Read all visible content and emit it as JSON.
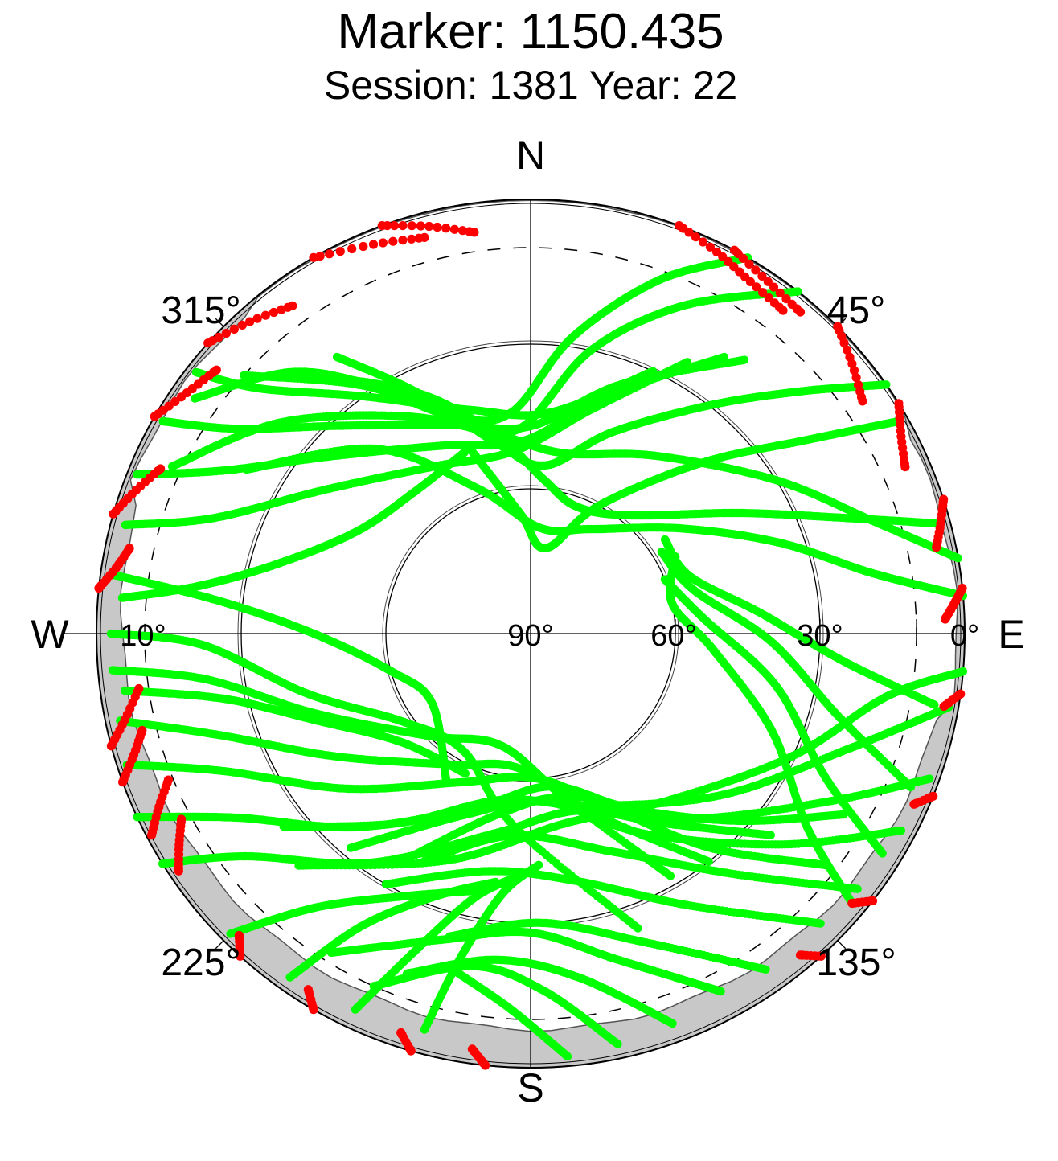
{
  "title": "Marker: 1150.435",
  "subtitle": "Session: 1381 Year: 22",
  "chart_data": {
    "type": "scatter",
    "projection": "polar sky plot",
    "title": "Marker: 1150.435",
    "subtitle": "Session: 1381 Year: 22",
    "direction_labels": [
      "N",
      "E",
      "S",
      "W"
    ],
    "azimuth_labels": [
      "45°",
      "135°",
      "225°",
      "315°"
    ],
    "elevation_labels": [
      "0°",
      "10°",
      "30°",
      "60°",
      "90°"
    ],
    "elevation_circles": [
      0,
      10,
      30,
      60
    ],
    "mask_elevation": 10,
    "series": [],
    "colors": {
      "valid": "#00ff00",
      "low_elevation": "#ff0000",
      "obstruction": "#c8c8c8",
      "grid": "#000000"
    },
    "tracks": [
      {
        "az": [
          38,
          25,
          12,
          358,
          345,
          330,
          318,
          305
        ],
        "el": [
          0,
          15,
          30,
          47,
          45,
          32,
          17,
          5
        ],
        "color": "green"
      },
      {
        "az": [
          30,
          20,
          8,
          355,
          340,
          326,
          312
        ],
        "el": [
          0,
          12,
          28,
          44,
          42,
          28,
          10
        ],
        "color": "green"
      },
      {
        "az": [
          55,
          48,
          38,
          22,
          5,
          350,
          335,
          325
        ],
        "el": [
          0,
          15,
          30,
          45,
          55,
          50,
          35,
          20
        ],
        "color": "green"
      },
      {
        "az": [
          60,
          55,
          45,
          28,
          10,
          355,
          342
        ],
        "el": [
          2,
          20,
          40,
          60,
          72,
          65,
          50
        ],
        "color": "green"
      },
      {
        "az": [
          75,
          70,
          60,
          40,
          20,
          5,
          350,
          335,
          320
        ],
        "el": [
          2,
          20,
          40,
          58,
          62,
          58,
          48,
          35,
          20
        ],
        "color": "green"
      },
      {
        "az": [
          80,
          72,
          58,
          35,
          10,
          350,
          330,
          310,
          295
        ],
        "el": [
          0,
          15,
          30,
          45,
          52,
          48,
          38,
          22,
          8
        ],
        "color": "green"
      },
      {
        "az": [
          85,
          80,
          70,
          55,
          30,
          5,
          340,
          320,
          300
        ],
        "el": [
          0,
          18,
          35,
          52,
          65,
          68,
          58,
          40,
          22
        ],
        "color": "green"
      },
      {
        "az": [
          95,
          100,
          115,
          140,
          170,
          200,
          225
        ],
        "el": [
          0,
          15,
          30,
          45,
          50,
          40,
          22
        ],
        "color": "green"
      },
      {
        "az": [
          100,
          110,
          130,
          160,
          190,
          215,
          232
        ],
        "el": [
          2,
          20,
          38,
          52,
          55,
          42,
          25
        ],
        "color": "green"
      },
      {
        "az": [
          110,
          120,
          140,
          165,
          190,
          210
        ],
        "el": [
          2,
          20,
          40,
          55,
          52,
          35
        ],
        "color": "green"
      },
      {
        "az": [
          118,
          130,
          150,
          175,
          200,
          220
        ],
        "el": [
          3,
          22,
          42,
          55,
          50,
          32
        ],
        "color": "green"
      },
      {
        "az": [
          128,
          140,
          160,
          185,
          205
        ],
        "el": [
          4,
          25,
          42,
          48,
          38
        ],
        "color": "green"
      },
      {
        "az": [
          135,
          150,
          170,
          190,
          210
        ],
        "el": [
          5,
          25,
          38,
          40,
          30
        ],
        "color": "green"
      },
      {
        "az": [
          145,
          160,
          178,
          195
        ],
        "el": [
          5,
          22,
          30,
          25
        ],
        "color": "green"
      },
      {
        "az": [
          152,
          165,
          180,
          196,
          212
        ],
        "el": [
          6,
          20,
          28,
          24,
          12
        ],
        "color": "green"
      },
      {
        "az": [
          160,
          172,
          186,
          200
        ],
        "el": [
          4,
          18,
          22,
          15
        ],
        "color": "green"
      },
      {
        "az": [
          168,
          178,
          190,
          204
        ],
        "el": [
          3,
          16,
          20,
          10
        ],
        "color": "green"
      },
      {
        "az": [
          175,
          183,
          192
        ],
        "el": [
          2,
          12,
          18
        ],
        "color": "green"
      },
      {
        "az": [
          238,
          232,
          215,
          190,
          165,
          145,
          130
        ],
        "el": [
          0,
          15,
          32,
          48,
          52,
          42,
          25
        ],
        "color": "green"
      },
      {
        "az": [
          245,
          238,
          222,
          198,
          172,
          150,
          132,
          120
        ],
        "el": [
          0,
          18,
          36,
          52,
          58,
          48,
          32,
          15
        ],
        "color": "green"
      },
      {
        "az": [
          252,
          246,
          230,
          205,
          178,
          155,
          140,
          128
        ],
        "el": [
          2,
          20,
          40,
          56,
          60,
          50,
          32,
          12
        ],
        "color": "green"
      },
      {
        "az": [
          258,
          252,
          238,
          212,
          185,
          160,
          142
        ],
        "el": [
          3,
          22,
          42,
          58,
          62,
          50,
          30
        ],
        "color": "green"
      },
      {
        "az": [
          265,
          262,
          250,
          225,
          195,
          168,
          150
        ],
        "el": [
          3,
          22,
          42,
          60,
          66,
          55,
          32
        ],
        "color": "green"
      },
      {
        "az": [
          270,
          268,
          255,
          235,
          210,
          185,
          160
        ],
        "el": [
          3,
          22,
          42,
          58,
          62,
          50,
          25
        ],
        "color": "green"
      },
      {
        "az": [
          278,
          276,
          270,
          255,
          235,
          210
        ],
        "el": [
          3,
          25,
          45,
          60,
          65,
          55
        ],
        "color": "green"
      },
      {
        "az": [
          285,
          290,
          305,
          330,
          355,
          15,
          30
        ],
        "el": [
          3,
          20,
          38,
          50,
          52,
          42,
          25
        ],
        "color": "green"
      },
      {
        "az": [
          292,
          298,
          312,
          335,
          358,
          18,
          35
        ],
        "el": [
          2,
          18,
          35,
          47,
          50,
          38,
          20
        ],
        "color": "green"
      },
      {
        "az": [
          300,
          305,
          318,
          340,
          0,
          20,
          38
        ],
        "el": [
          2,
          16,
          32,
          44,
          47,
          35,
          18
        ],
        "color": "green"
      },
      {
        "az": [
          308,
          312,
          325,
          345,
          5,
          25
        ],
        "el": [
          2,
          14,
          30,
          42,
          44,
          30
        ],
        "color": "green"
      },
      {
        "az": [
          275,
          278,
          285,
          300,
          320,
          340
        ],
        "el": [
          5,
          20,
          35,
          48,
          52,
          50
        ],
        "color": "green"
      },
      {
        "az": [
          262,
          258,
          248,
          230,
          205
        ],
        "el": [
          5,
          25,
          42,
          55,
          58
        ],
        "color": "green"
      },
      {
        "az": [
          225,
          218,
          205,
          190
        ],
        "el": [
          2,
          18,
          30,
          36
        ],
        "color": "green"
      },
      {
        "az": [
          215,
          210,
          200,
          188
        ],
        "el": [
          3,
          20,
          32,
          38
        ],
        "color": "green"
      },
      {
        "az": [
          205,
          200,
          192,
          182
        ],
        "el": [
          4,
          20,
          34,
          40
        ],
        "color": "green"
      },
      {
        "az": [
          195,
          192,
          186,
          178
        ],
        "el": [
          5,
          22,
          36,
          42
        ],
        "color": "green"
      },
      {
        "az": [
          130,
          125,
          112,
          95,
          78,
          62
        ],
        "el": [
          3,
          20,
          36,
          52,
          60,
          56
        ],
        "color": "green"
      },
      {
        "az": [
          122,
          116,
          102,
          85,
          68
        ],
        "el": [
          4,
          22,
          38,
          54,
          60
        ],
        "color": "green"
      },
      {
        "az": [
          112,
          105,
          92,
          75,
          58
        ],
        "el": [
          5,
          24,
          40,
          55,
          58
        ],
        "color": "green"
      },
      {
        "az": [
          100,
          95,
          85,
          70,
          55
        ],
        "el": [
          5,
          25,
          42,
          55,
          56
        ],
        "color": "green"
      }
    ],
    "red_segments": [
      {
        "az": [
          330,
          338,
          345
        ],
        "el": [
          0,
          3,
          5
        ]
      },
      {
        "az": [
          340,
          346,
          352
        ],
        "el": [
          0,
          3,
          6
        ]
      },
      {
        "az": [
          20,
          26,
          32,
          38
        ],
        "el": [
          0,
          2,
          4,
          5
        ]
      },
      {
        "az": [
          28,
          34,
          40
        ],
        "el": [
          0,
          2,
          3
        ]
      },
      {
        "az": [
          45,
          50,
          55
        ],
        "el": [
          0,
          3,
          6
        ]
      },
      {
        "az": [
          58,
          62,
          66
        ],
        "el": [
          0,
          3,
          5
        ]
      },
      {
        "az": [
          72,
          75,
          78
        ],
        "el": [
          0,
          2,
          4
        ]
      },
      {
        "az": [
          84,
          86,
          88
        ],
        "el": [
          0,
          2,
          4
        ]
      },
      {
        "az": [
          312,
          318,
          324
        ],
        "el": [
          0,
          3,
          6
        ]
      },
      {
        "az": [
          300,
          305,
          310
        ],
        "el": [
          0,
          3,
          5
        ]
      },
      {
        "az": [
          286,
          290,
          294
        ],
        "el": [
          0,
          3,
          6
        ]
      },
      {
        "az": [
          276,
          279,
          282
        ],
        "el": [
          0,
          3,
          5
        ]
      },
      {
        "az": [
          255,
          258,
          262
        ],
        "el": [
          0,
          4,
          8
        ]
      },
      {
        "az": [
          250,
          253,
          256
        ],
        "el": [
          0,
          4,
          7
        ]
      },
      {
        "az": [
          242,
          245,
          248
        ],
        "el": [
          1,
          5,
          9
        ]
      },
      {
        "az": [
          236,
          239,
          242
        ],
        "el": [
          2,
          5,
          8
        ]
      },
      {
        "az": [
          222,
          224
        ],
        "el": [
          0,
          3
        ]
      },
      {
        "az": [
          210,
          212
        ],
        "el": [
          0,
          3
        ]
      },
      {
        "az": [
          196,
          198
        ],
        "el": [
          0,
          3
        ]
      },
      {
        "az": [
          186,
          188
        ],
        "el": [
          0,
          3
        ]
      },
      {
        "az": [
          138,
          140
        ],
        "el": [
          0,
          3
        ]
      },
      {
        "az": [
          128,
          130
        ],
        "el": [
          0,
          3
        ]
      },
      {
        "az": [
          112,
          114
        ],
        "el": [
          0,
          3
        ]
      },
      {
        "az": [
          98,
          100
        ],
        "el": [
          0,
          3
        ]
      }
    ]
  }
}
